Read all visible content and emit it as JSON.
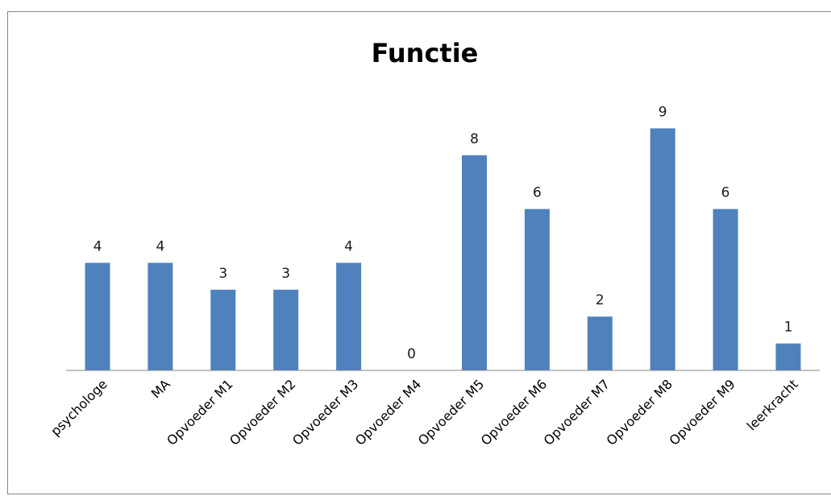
{
  "chart_data": {
    "type": "bar",
    "title": "Functie",
    "xlabel": "",
    "ylabel": "",
    "categories": [
      "psychologe",
      "MA",
      "Opvoeder M1",
      "Opvoeder M2",
      "Opvoeder M3",
      "Opvoeder M4",
      "Opvoeder M5",
      "Opvoeder M6",
      "Opvoeder M7",
      "Opvoeder M8",
      "Opvoeder M9",
      "leerkracht"
    ],
    "values": [
      4,
      4,
      3,
      3,
      4,
      0,
      8,
      6,
      2,
      9,
      6,
      1
    ],
    "ylim": [
      0,
      9
    ],
    "grid": false,
    "legend": "none",
    "bar_color": "#4F81BD",
    "axis_color": "#868686"
  }
}
